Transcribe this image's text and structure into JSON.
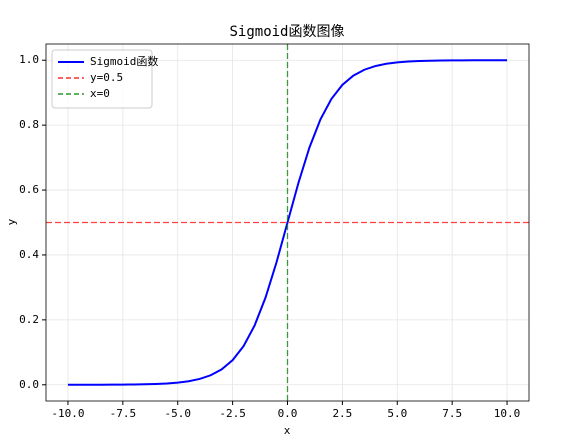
{
  "chart_data": {
    "type": "line",
    "title": "Sigmoid函数图像",
    "x_label": "x",
    "y_label": "y",
    "x": [
      -10,
      -9.5,
      -9,
      -8.5,
      -8,
      -7.5,
      -7,
      -6.5,
      -6,
      -5.5,
      -5,
      -4.5,
      -4,
      -3.5,
      -3,
      -2.5,
      -2,
      -1.5,
      -1,
      -0.5,
      0,
      0.5,
      1,
      1.5,
      2,
      2.5,
      3,
      3.5,
      4,
      4.5,
      5,
      5.5,
      6,
      6.5,
      7,
      7.5,
      8,
      8.5,
      9,
      9.5,
      10
    ],
    "series": [
      {
        "name": "Sigmoid函数",
        "color": "#0000ff",
        "values": [
          0,
          0.0001,
          0.0001,
          0.0002,
          0.0003,
          0.0006,
          0.0009,
          0.0015,
          0.0025,
          0.0041,
          0.0067,
          0.011,
          0.018,
          0.0293,
          0.0474,
          0.0759,
          0.1192,
          0.1824,
          0.2689,
          0.3775,
          0.5,
          0.6225,
          0.7311,
          0.8176,
          0.8808,
          0.9241,
          0.9526,
          0.9707,
          0.982,
          0.989,
          0.9933,
          0.9959,
          0.9975,
          0.9985,
          0.9991,
          0.9994,
          0.9997,
          0.9998,
          0.9999,
          0.9999,
          1
        ]
      }
    ],
    "hlines": [
      {
        "name": "y=0.5",
        "value": 0.5,
        "color": "#ff0000"
      }
    ],
    "vlines": [
      {
        "name": "x=0",
        "value": 0,
        "color": "#008000"
      }
    ],
    "xlim": [
      -11,
      11
    ],
    "ylim": [
      -0.05,
      1.05
    ],
    "xticks": [
      {
        "value": -10,
        "label": "-10.0"
      },
      {
        "value": -7.5,
        "label": "-7.5"
      },
      {
        "value": -5,
        "label": "-5.0"
      },
      {
        "value": -2.5,
        "label": "-2.5"
      },
      {
        "value": 0,
        "label": "0.0"
      },
      {
        "value": 2.5,
        "label": "2.5"
      },
      {
        "value": 5,
        "label": "5.0"
      },
      {
        "value": 7.5,
        "label": "7.5"
      },
      {
        "value": 10,
        "label": "10.0"
      }
    ],
    "yticks": [
      {
        "value": 0,
        "label": "0.0"
      },
      0.2,
      0.4,
      0.6,
      0.8,
      {
        "value": 1,
        "label": "1.0"
      }
    ],
    "grid": true,
    "legend": "upper left"
  }
}
